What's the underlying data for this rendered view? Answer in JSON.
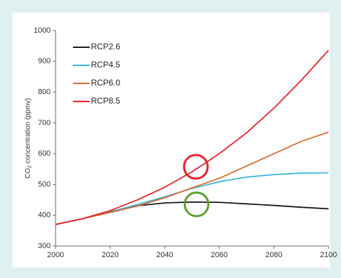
{
  "chart_data": {
    "type": "line",
    "ylabel": [
      "CO",
      "2",
      " concentration (ppmv)"
    ],
    "x": [
      2000,
      2010,
      2020,
      2030,
      2040,
      2050,
      2060,
      2070,
      2080,
      2090,
      2100
    ],
    "series": [
      {
        "name": "RCP2.6",
        "color": "#1a1a1a",
        "values": [
          370,
          389,
          412,
          431,
          440,
          443,
          442,
          437,
          432,
          426,
          421
        ]
      },
      {
        "name": "RCP4.5",
        "color": "#3fb4e0",
        "values": [
          370,
          389,
          411,
          435,
          460,
          487,
          509,
          524,
          532,
          537,
          538
        ]
      },
      {
        "name": "RCP6.0",
        "color": "#d96b2b",
        "values": [
          370,
          389,
          409,
          430,
          457,
          489,
          520,
          560,
          600,
          640,
          670
        ]
      },
      {
        "name": "RCP8.5",
        "color": "#e8222a",
        "values": [
          370,
          389,
          415,
          450,
          491,
          541,
          600,
          668,
          748,
          838,
          936
        ]
      }
    ],
    "xlim": [
      2000,
      2100
    ],
    "xticks": [
      2000,
      2020,
      2040,
      2060,
      2080,
      2100
    ],
    "ylim": [
      300,
      1000
    ],
    "yticks": [
      300,
      400,
      500,
      600,
      700,
      800,
      900,
      1000
    ],
    "legend": "upper left",
    "grid": false
  }
}
